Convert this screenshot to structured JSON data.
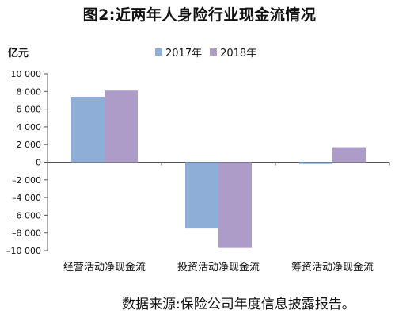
{
  "chart_data": {
    "type": "bar",
    "title": "图2:近两年人身险行业现金流情况",
    "unit_label": "亿元",
    "categories": [
      "经营活动净现金流",
      "投资活动净现金流",
      "筹资活动净现金流"
    ],
    "series": [
      {
        "name": "2017年",
        "color": "#8eaed8",
        "values": [
          7400,
          -7500,
          -200
        ]
      },
      {
        "name": "2018年",
        "color": "#ad9cc8",
        "values": [
          8100,
          -9700,
          1700
        ]
      }
    ],
    "ylim": [
      -10000,
      10000
    ],
    "yticks": [
      10000,
      8000,
      6000,
      4000,
      2000,
      0,
      -2000,
      -4000,
      -6000,
      -8000,
      -10000
    ],
    "ytick_labels": [
      "10 000",
      "8 000",
      "6 000",
      "4 000",
      "2 000",
      "0",
      "–2 000",
      "–4 000",
      "–6 000",
      "–8 000",
      "–10 000"
    ],
    "grid": false,
    "legend_position": "top-center"
  },
  "source_note": "数据来源:保险公司年度信息披露报告。"
}
